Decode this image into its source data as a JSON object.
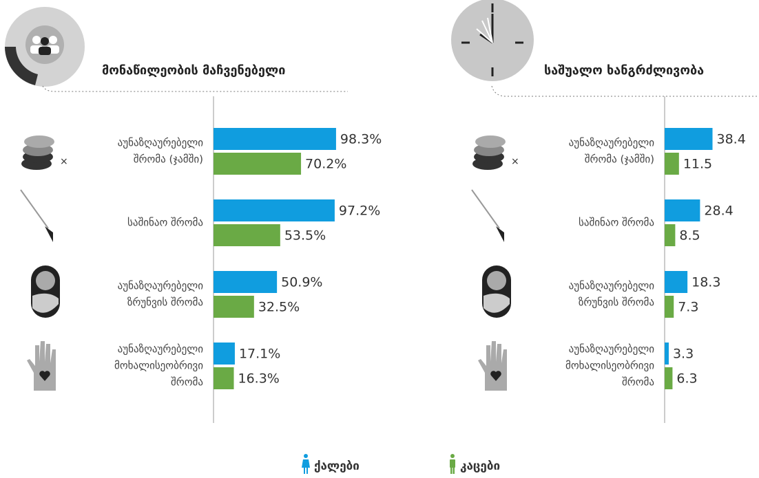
{
  "chart_data": [
    {
      "type": "bar",
      "title": "მონაწილეობის მაჩვენებელი",
      "categories": [
        [
          "აუნაზღაურებელი",
          "შრომა (ჯამში)"
        ],
        [
          "საშინაო შრომა"
        ],
        [
          "აუნაზღაურებელი",
          "ზრუნვის შრომა"
        ],
        [
          "აუნაზღაურებელი",
          "მოხალისეობრივი",
          "შრომა"
        ]
      ],
      "series": [
        {
          "name": "ქალები",
          "color": "#109ddf",
          "values": [
            98.3,
            97.2,
            50.9,
            17.1
          ],
          "value_labels": [
            "98.3%",
            "97.2%",
            "50.9%",
            "17.1%"
          ]
        },
        {
          "name": "კაცები",
          "color": "#6aaa45",
          "values": [
            70.2,
            53.5,
            32.5,
            16.3
          ],
          "value_labels": [
            "70.2%",
            "53.5%",
            "32.5%",
            "16.3%"
          ]
        }
      ],
      "xlim": [
        0,
        100
      ]
    },
    {
      "type": "bar",
      "title": "საშუალო ხანგრძლივობა",
      "categories": [
        [
          "აუნაზღაურებელი",
          "შრომა (ჯამში)"
        ],
        [
          "საშინაო შრომა"
        ],
        [
          "აუნაზღაურებელი",
          "ზრუნვის შრომა"
        ],
        [
          "აუნაზღაურებელი",
          "მოხალისეობრივი",
          "შრომა"
        ]
      ],
      "series": [
        {
          "color": "#109ddf",
          "values": [
            38.4,
            28.4,
            18.3,
            3.3
          ]
        },
        {
          "color": "#6aaa45",
          "values": [
            11.5,
            8.5,
            7.3,
            6.3
          ]
        }
      ],
      "xlim": [
        0,
        100
      ]
    }
  ]
}
